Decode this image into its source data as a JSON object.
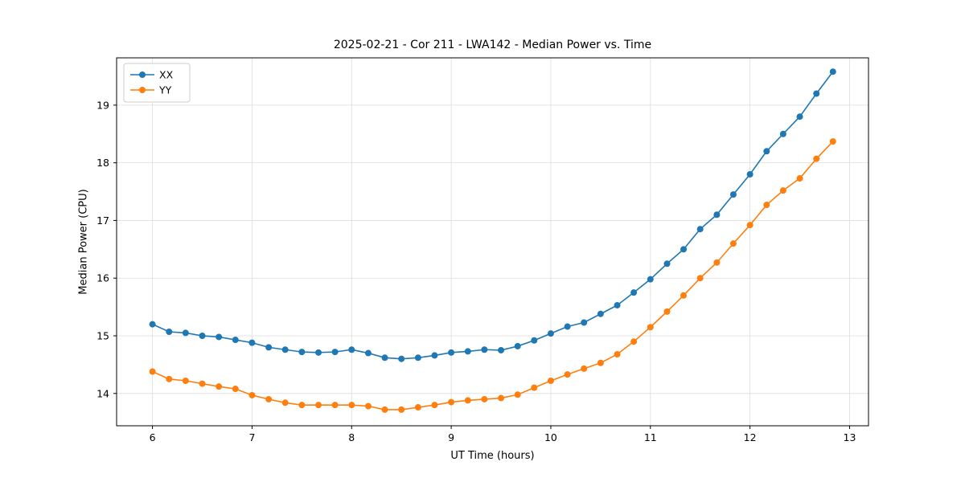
{
  "chart_data": {
    "type": "line",
    "title": "2025-02-21 - Cor 211 - LWA142 - Median Power vs. Time",
    "xlabel": "UT Time (hours)",
    "ylabel": "Median Power (CPU)",
    "xlim": [
      5.64,
      13.19
    ],
    "ylim": [
      13.44,
      19.82
    ],
    "x_ticks": [
      6,
      7,
      8,
      9,
      10,
      11,
      12,
      13
    ],
    "y_ticks": [
      14,
      15,
      16,
      17,
      18,
      19
    ],
    "grid": true,
    "legend_position": "upper left",
    "x": [
      6.0,
      6.167,
      6.333,
      6.5,
      6.667,
      6.833,
      7.0,
      7.167,
      7.333,
      7.5,
      7.667,
      7.833,
      8.0,
      8.167,
      8.333,
      8.5,
      8.667,
      8.833,
      9.0,
      9.167,
      9.333,
      9.5,
      9.667,
      9.833,
      10.0,
      10.167,
      10.333,
      10.5,
      10.667,
      10.833,
      11.0,
      11.167,
      11.333,
      11.5,
      11.667,
      11.833,
      12.0,
      12.167,
      12.333,
      12.5,
      12.667,
      12.833
    ],
    "series": [
      {
        "name": "XX",
        "color": "#1f77b4",
        "values": [
          15.2,
          15.07,
          15.05,
          15.0,
          14.98,
          14.93,
          14.88,
          14.8,
          14.76,
          14.72,
          14.71,
          14.72,
          14.76,
          14.7,
          14.62,
          14.6,
          14.62,
          14.66,
          14.71,
          14.73,
          14.76,
          14.75,
          14.82,
          14.92,
          15.04,
          15.16,
          15.23,
          15.38,
          15.53,
          15.75,
          15.98,
          16.25,
          16.5,
          16.85,
          17.1,
          17.45,
          17.8,
          18.2,
          18.5,
          18.8,
          19.2,
          19.58
        ]
      },
      {
        "name": "YY",
        "color": "#ff7f0e",
        "values": [
          14.38,
          14.25,
          14.22,
          14.17,
          14.12,
          14.08,
          13.97,
          13.9,
          13.84,
          13.8,
          13.8,
          13.8,
          13.8,
          13.78,
          13.72,
          13.72,
          13.76,
          13.8,
          13.85,
          13.88,
          13.9,
          13.92,
          13.98,
          14.1,
          14.22,
          14.33,
          14.43,
          14.53,
          14.68,
          14.9,
          15.15,
          15.42,
          15.7,
          16.0,
          16.27,
          16.6,
          16.92,
          17.27,
          17.52,
          17.73,
          18.07,
          18.37
        ]
      }
    ],
    "style": {
      "grid_color": "#dddddd",
      "spine_color": "#000000",
      "legend_border_color": "#cccccc",
      "marker_radius": 4,
      "line_width": 1.6
    }
  }
}
